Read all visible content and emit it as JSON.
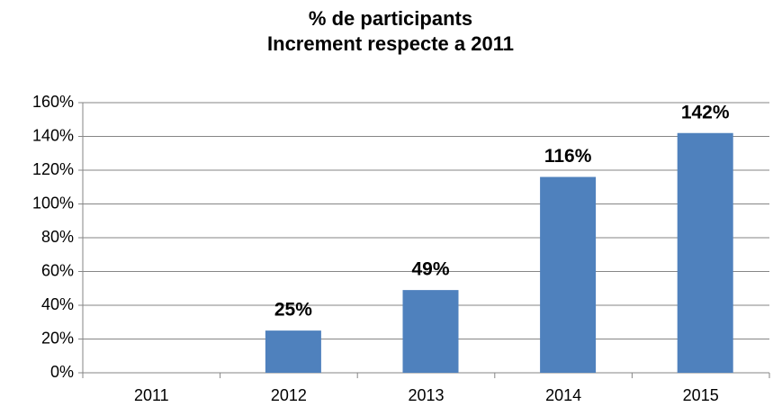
{
  "chart_data": {
    "type": "bar",
    "title": "% de participants",
    "subtitle": "Increment respecte a 2011",
    "categories": [
      "2011",
      "2012",
      "2013",
      "2014",
      "2015"
    ],
    "values": [
      0,
      25,
      49,
      116,
      142
    ],
    "value_labels": [
      null,
      "25%",
      "49%",
      "116%",
      "142%"
    ],
    "color": "#4f81bd",
    "ylim": [
      0,
      160
    ],
    "yticks": [
      {
        "value": 0,
        "label": "0%"
      },
      {
        "value": 20,
        "label": "20%"
      },
      {
        "value": 40,
        "label": "40%"
      },
      {
        "value": 60,
        "label": "60%"
      },
      {
        "value": 80,
        "label": "80%"
      },
      {
        "value": 100,
        "label": "100%"
      },
      {
        "value": 120,
        "label": "120%"
      },
      {
        "value": 140,
        "label": "140%"
      },
      {
        "value": 160,
        "label": "160%"
      }
    ],
    "grid": true
  }
}
